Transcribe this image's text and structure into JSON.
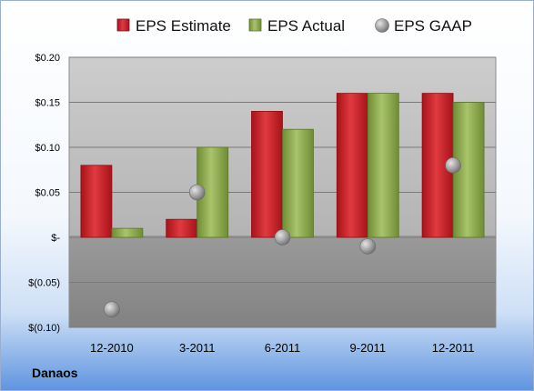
{
  "chart_data": {
    "type": "bar",
    "title": "",
    "xlabel": "",
    "ylabel": "",
    "categories": [
      "12-2010",
      "3-2011",
      "6-2011",
      "9-2011",
      "12-2011"
    ],
    "series": [
      {
        "name": "EPS Estimate",
        "kind": "bar",
        "color": "#d6262d",
        "values": [
          0.08,
          0.02,
          0.14,
          0.16,
          0.16
        ]
      },
      {
        "name": "EPS Actual",
        "kind": "bar",
        "color": "#8fae4e",
        "values": [
          0.01,
          0.1,
          0.12,
          0.16,
          0.15
        ]
      },
      {
        "name": "EPS GAAP",
        "kind": "scatter",
        "color": "#9a9a9a",
        "values": [
          -0.08,
          0.05,
          0.0,
          -0.01,
          0.08
        ]
      }
    ],
    "ylim": [
      -0.1,
      0.2
    ],
    "yticks": [
      0.2,
      0.15,
      0.1,
      0.05,
      0.0,
      -0.05,
      -0.1
    ],
    "ytick_labels": [
      "$0.20",
      "$0.15",
      "$0.10",
      "$0.05",
      "$-",
      "$(0.05)",
      "$(0.10)"
    ],
    "grid": true,
    "legend_position": "top"
  },
  "company": "Danaos"
}
